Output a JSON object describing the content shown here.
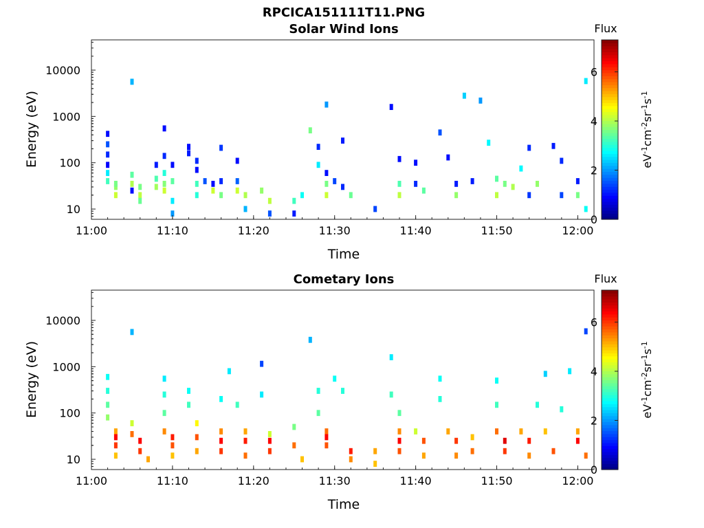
{
  "figure_title": "RPCICA151111T11.PNG",
  "colorbar_label": "Flux",
  "colorbar_unit_parts": [
    "eV",
    "-1",
    "cm",
    "-2",
    "sr",
    "-1",
    "s",
    "-1"
  ],
  "colorbar_ticks": [
    "0",
    "2",
    "4",
    "6"
  ],
  "colormap": [
    "#00007f",
    "#0000ff",
    "#007fff",
    "#00ffff",
    "#7fff7f",
    "#ffff00",
    "#ff7f00",
    "#ff0000",
    "#7f0000"
  ],
  "chart_data": [
    {
      "type": "heatmap",
      "title": "Solar Wind Ions",
      "xlabel": "Time",
      "ylabel": "Energy (eV)",
      "y_scale": "log",
      "x_tick_labels": [
        "11:00",
        "11:10",
        "11:20",
        "11:30",
        "11:40",
        "11:50",
        "12:00"
      ],
      "y_tick_labels": [
        "10",
        "100",
        "1000",
        "10000"
      ],
      "xlim": [
        "11:00",
        "12:02"
      ],
      "ylim": [
        6,
        45000
      ],
      "clim": [
        0,
        7.3
      ],
      "grid": false,
      "points": [
        {
          "t": "11:02",
          "e": 420,
          "f": 1.0
        },
        {
          "t": "11:02",
          "e": 250,
          "f": 1.5
        },
        {
          "t": "11:02",
          "e": 150,
          "f": 1.2
        },
        {
          "t": "11:02",
          "e": 90,
          "f": 0.9
        },
        {
          "t": "11:02",
          "e": 60,
          "f": 2.6
        },
        {
          "t": "11:02",
          "e": 40,
          "f": 3.2
        },
        {
          "t": "11:03",
          "e": 30,
          "f": 3.8
        },
        {
          "t": "11:03",
          "e": 20,
          "f": 4.2
        },
        {
          "t": "11:03",
          "e": 35,
          "f": 3.6
        },
        {
          "t": "11:05",
          "e": 5600,
          "f": 2.2
        },
        {
          "t": "11:05",
          "e": 55,
          "f": 3.4
        },
        {
          "t": "11:05",
          "e": 35,
          "f": 4.0
        },
        {
          "t": "11:05",
          "e": 25,
          "f": 1.0
        },
        {
          "t": "11:06",
          "e": 30,
          "f": 3.6
        },
        {
          "t": "11:06",
          "e": 20,
          "f": 4.1
        },
        {
          "t": "11:06",
          "e": 15,
          "f": 3.5
        },
        {
          "t": "11:08",
          "e": 90,
          "f": 1.1
        },
        {
          "t": "11:08",
          "e": 45,
          "f": 3.3
        },
        {
          "t": "11:08",
          "e": 30,
          "f": 3.9
        },
        {
          "t": "11:09",
          "e": 550,
          "f": 1.0
        },
        {
          "t": "11:09",
          "e": 140,
          "f": 1.2
        },
        {
          "t": "11:09",
          "e": 60,
          "f": 3.0
        },
        {
          "t": "11:09",
          "e": 35,
          "f": 3.7
        },
        {
          "t": "11:09",
          "e": 25,
          "f": 4.2
        },
        {
          "t": "11:10",
          "e": 90,
          "f": 1.0
        },
        {
          "t": "11:10",
          "e": 40,
          "f": 3.4
        },
        {
          "t": "11:10",
          "e": 15,
          "f": 2.6
        },
        {
          "t": "11:10",
          "e": 8,
          "f": 2.0
        },
        {
          "t": "11:12",
          "e": 220,
          "f": 1.0
        },
        {
          "t": "11:12",
          "e": 160,
          "f": 1.1
        },
        {
          "t": "11:13",
          "e": 110,
          "f": 1.2
        },
        {
          "t": "11:13",
          "e": 70,
          "f": 1.0
        },
        {
          "t": "11:13",
          "e": 35,
          "f": 3.2
        },
        {
          "t": "11:13",
          "e": 20,
          "f": 3.0
        },
        {
          "t": "11:14",
          "e": 40,
          "f": 1.5
        },
        {
          "t": "11:15",
          "e": 35,
          "f": 1.0
        },
        {
          "t": "11:15",
          "e": 25,
          "f": 4.2
        },
        {
          "t": "11:16",
          "e": 210,
          "f": 1.3
        },
        {
          "t": "11:16",
          "e": 40,
          "f": 1.2
        },
        {
          "t": "11:16",
          "e": 20,
          "f": 3.6
        },
        {
          "t": "11:18",
          "e": 110,
          "f": 1.0
        },
        {
          "t": "11:18",
          "e": 40,
          "f": 1.6
        },
        {
          "t": "11:18",
          "e": 25,
          "f": 4.2
        },
        {
          "t": "11:19",
          "e": 20,
          "f": 4.0
        },
        {
          "t": "11:19",
          "e": 10,
          "f": 2.2
        },
        {
          "t": "11:21",
          "e": 25,
          "f": 3.8
        },
        {
          "t": "11:22",
          "e": 15,
          "f": 4.1
        },
        {
          "t": "11:22",
          "e": 8,
          "f": 1.5
        },
        {
          "t": "11:25",
          "e": 15,
          "f": 3.2
        },
        {
          "t": "11:25",
          "e": 8,
          "f": 1.1
        },
        {
          "t": "11:26",
          "e": 20,
          "f": 2.8
        },
        {
          "t": "11:27",
          "e": 500,
          "f": 3.6
        },
        {
          "t": "11:28",
          "e": 90,
          "f": 2.6
        },
        {
          "t": "11:28",
          "e": 220,
          "f": 1.2
        },
        {
          "t": "11:29",
          "e": 1800,
          "f": 2.0
        },
        {
          "t": "11:29",
          "e": 60,
          "f": 1.0
        },
        {
          "t": "11:29",
          "e": 35,
          "f": 3.6
        },
        {
          "t": "11:29",
          "e": 20,
          "f": 4.2
        },
        {
          "t": "11:30",
          "e": 40,
          "f": 1.4
        },
        {
          "t": "11:31",
          "e": 300,
          "f": 1.1
        },
        {
          "t": "11:31",
          "e": 30,
          "f": 1.2
        },
        {
          "t": "11:32",
          "e": 20,
          "f": 3.5
        },
        {
          "t": "11:35",
          "e": 10,
          "f": 1.4
        },
        {
          "t": "11:37",
          "e": 1600,
          "f": 1.0
        },
        {
          "t": "11:38",
          "e": 120,
          "f": 1.0
        },
        {
          "t": "11:38",
          "e": 35,
          "f": 3.3
        },
        {
          "t": "11:38",
          "e": 20,
          "f": 4.1
        },
        {
          "t": "11:40",
          "e": 100,
          "f": 1.0
        },
        {
          "t": "11:40",
          "e": 35,
          "f": 1.2
        },
        {
          "t": "11:41",
          "e": 25,
          "f": 3.4
        },
        {
          "t": "11:43",
          "e": 450,
          "f": 1.5
        },
        {
          "t": "11:44",
          "e": 130,
          "f": 1.0
        },
        {
          "t": "11:45",
          "e": 35,
          "f": 1.1
        },
        {
          "t": "11:45",
          "e": 20,
          "f": 3.8
        },
        {
          "t": "11:46",
          "e": 2800,
          "f": 2.4
        },
        {
          "t": "11:47",
          "e": 40,
          "f": 1.1
        },
        {
          "t": "11:48",
          "e": 2200,
          "f": 2.0
        },
        {
          "t": "11:49",
          "e": 270,
          "f": 2.7
        },
        {
          "t": "11:50",
          "e": 45,
          "f": 3.4
        },
        {
          "t": "11:50",
          "e": 20,
          "f": 4.1
        },
        {
          "t": "11:51",
          "e": 35,
          "f": 3.6
        },
        {
          "t": "11:52",
          "e": 30,
          "f": 4.0
        },
        {
          "t": "11:53",
          "e": 75,
          "f": 2.7
        },
        {
          "t": "11:54",
          "e": 210,
          "f": 1.2
        },
        {
          "t": "11:54",
          "e": 20,
          "f": 1.3
        },
        {
          "t": "11:55",
          "e": 35,
          "f": 3.8
        },
        {
          "t": "11:57",
          "e": 230,
          "f": 1.1
        },
        {
          "t": "11:58",
          "e": 110,
          "f": 1.2
        },
        {
          "t": "11:58",
          "e": 20,
          "f": 1.4
        },
        {
          "t": "12:00",
          "e": 40,
          "f": 1.1
        },
        {
          "t": "12:00",
          "e": 20,
          "f": 3.6
        },
        {
          "t": "12:01",
          "e": 10,
          "f": 2.8
        },
        {
          "t": "12:01",
          "e": 5800,
          "f": 2.6
        }
      ]
    },
    {
      "type": "heatmap",
      "title": "Cometary Ions",
      "xlabel": "Time",
      "ylabel": "Energy (eV)",
      "y_scale": "log",
      "x_tick_labels": [
        "11:00",
        "11:10",
        "11:20",
        "11:30",
        "11:40",
        "11:50",
        "12:00"
      ],
      "y_tick_labels": [
        "10",
        "100",
        "1000",
        "10000"
      ],
      "xlim": [
        "11:00",
        "12:02"
      ],
      "ylim": [
        6,
        45000
      ],
      "clim": [
        0,
        7.3
      ],
      "grid": false,
      "points": [
        {
          "t": "11:02",
          "e": 600,
          "f": 2.8
        },
        {
          "t": "11:02",
          "e": 300,
          "f": 3.0
        },
        {
          "t": "11:02",
          "e": 150,
          "f": 3.4
        },
        {
          "t": "11:02",
          "e": 80,
          "f": 3.8
        },
        {
          "t": "11:03",
          "e": 40,
          "f": 5.2
        },
        {
          "t": "11:03",
          "e": 30,
          "f": 6.4
        },
        {
          "t": "11:03",
          "e": 20,
          "f": 6.0
        },
        {
          "t": "11:03",
          "e": 12,
          "f": 5.0
        },
        {
          "t": "11:05",
          "e": 5600,
          "f": 2.2
        },
        {
          "t": "11:05",
          "e": 60,
          "f": 4.2
        },
        {
          "t": "11:05",
          "e": 35,
          "f": 5.6
        },
        {
          "t": "11:06",
          "e": 25,
          "f": 6.4
        },
        {
          "t": "11:06",
          "e": 15,
          "f": 6.0
        },
        {
          "t": "11:07",
          "e": 10,
          "f": 5.2
        },
        {
          "t": "11:09",
          "e": 550,
          "f": 2.6
        },
        {
          "t": "11:09",
          "e": 250,
          "f": 3.0
        },
        {
          "t": "11:09",
          "e": 100,
          "f": 3.4
        },
        {
          "t": "11:09",
          "e": 40,
          "f": 5.4
        },
        {
          "t": "11:10",
          "e": 30,
          "f": 6.2
        },
        {
          "t": "11:10",
          "e": 20,
          "f": 5.8
        },
        {
          "t": "11:10",
          "e": 12,
          "f": 5.0
        },
        {
          "t": "11:12",
          "e": 300,
          "f": 2.8
        },
        {
          "t": "11:12",
          "e": 150,
          "f": 3.2
        },
        {
          "t": "11:13",
          "e": 60,
          "f": 4.6
        },
        {
          "t": "11:13",
          "e": 30,
          "f": 5.8
        },
        {
          "t": "11:13",
          "e": 15,
          "f": 5.2
        },
        {
          "t": "11:16",
          "e": 200,
          "f": 2.8
        },
        {
          "t": "11:16",
          "e": 40,
          "f": 5.4
        },
        {
          "t": "11:16",
          "e": 25,
          "f": 6.4
        },
        {
          "t": "11:16",
          "e": 15,
          "f": 6.0
        },
        {
          "t": "11:17",
          "e": 800,
          "f": 2.6
        },
        {
          "t": "11:18",
          "e": 150,
          "f": 3.2
        },
        {
          "t": "11:19",
          "e": 40,
          "f": 5.2
        },
        {
          "t": "11:19",
          "e": 25,
          "f": 6.2
        },
        {
          "t": "11:19",
          "e": 12,
          "f": 5.6
        },
        {
          "t": "11:21",
          "e": 1150,
          "f": 1.4
        },
        {
          "t": "11:21",
          "e": 250,
          "f": 2.6
        },
        {
          "t": "11:22",
          "e": 35,
          "f": 4.2
        },
        {
          "t": "11:22",
          "e": 25,
          "f": 6.4
        },
        {
          "t": "11:22",
          "e": 15,
          "f": 6.0
        },
        {
          "t": "11:25",
          "e": 50,
          "f": 3.6
        },
        {
          "t": "11:25",
          "e": 20,
          "f": 5.6
        },
        {
          "t": "11:26",
          "e": 10,
          "f": 5.0
        },
        {
          "t": "11:27",
          "e": 3800,
          "f": 2.2
        },
        {
          "t": "11:28",
          "e": 300,
          "f": 3.0
        },
        {
          "t": "11:28",
          "e": 100,
          "f": 3.4
        },
        {
          "t": "11:29",
          "e": 40,
          "f": 5.6
        },
        {
          "t": "11:29",
          "e": 30,
          "f": 6.4
        },
        {
          "t": "11:29",
          "e": 20,
          "f": 5.8
        },
        {
          "t": "11:30",
          "e": 550,
          "f": 2.8
        },
        {
          "t": "11:31",
          "e": 300,
          "f": 3.0
        },
        {
          "t": "11:32",
          "e": 15,
          "f": 6.2
        },
        {
          "t": "11:32",
          "e": 10,
          "f": 5.4
        },
        {
          "t": "11:35",
          "e": 15,
          "f": 5.2
        },
        {
          "t": "11:35",
          "e": 8,
          "f": 5.0
        },
        {
          "t": "11:37",
          "e": 1600,
          "f": 2.6
        },
        {
          "t": "11:37",
          "e": 250,
          "f": 3.2
        },
        {
          "t": "11:38",
          "e": 100,
          "f": 3.4
        },
        {
          "t": "11:38",
          "e": 40,
          "f": 5.4
        },
        {
          "t": "11:38",
          "e": 25,
          "f": 6.4
        },
        {
          "t": "11:38",
          "e": 15,
          "f": 5.8
        },
        {
          "t": "11:40",
          "e": 40,
          "f": 4.2
        },
        {
          "t": "11:41",
          "e": 25,
          "f": 5.8
        },
        {
          "t": "11:41",
          "e": 12,
          "f": 5.2
        },
        {
          "t": "11:43",
          "e": 550,
          "f": 2.8
        },
        {
          "t": "11:43",
          "e": 200,
          "f": 3.0
        },
        {
          "t": "11:44",
          "e": 40,
          "f": 5.2
        },
        {
          "t": "11:45",
          "e": 25,
          "f": 6.0
        },
        {
          "t": "11:45",
          "e": 12,
          "f": 5.4
        },
        {
          "t": "11:47",
          "e": 30,
          "f": 5.0
        },
        {
          "t": "11:47",
          "e": 15,
          "f": 5.6
        },
        {
          "t": "11:50",
          "e": 500,
          "f": 2.8
        },
        {
          "t": "11:50",
          "e": 150,
          "f": 3.2
        },
        {
          "t": "11:50",
          "e": 40,
          "f": 5.6
        },
        {
          "t": "11:51",
          "e": 25,
          "f": 6.6
        },
        {
          "t": "11:51",
          "e": 15,
          "f": 6.0
        },
        {
          "t": "11:53",
          "e": 40,
          "f": 5.2
        },
        {
          "t": "11:54",
          "e": 25,
          "f": 6.2
        },
        {
          "t": "11:54",
          "e": 12,
          "f": 5.4
        },
        {
          "t": "11:55",
          "e": 150,
          "f": 3.0
        },
        {
          "t": "11:56",
          "e": 700,
          "f": 2.4
        },
        {
          "t": "11:56",
          "e": 40,
          "f": 5.0
        },
        {
          "t": "11:57",
          "e": 15,
          "f": 5.8
        },
        {
          "t": "11:58",
          "e": 120,
          "f": 3.0
        },
        {
          "t": "11:59",
          "e": 800,
          "f": 2.6
        },
        {
          "t": "12:00",
          "e": 40,
          "f": 5.2
        },
        {
          "t": "12:00",
          "e": 25,
          "f": 6.4
        },
        {
          "t": "12:01",
          "e": 12,
          "f": 5.6
        },
        {
          "t": "12:01",
          "e": 5800,
          "f": 1.4
        }
      ]
    }
  ]
}
